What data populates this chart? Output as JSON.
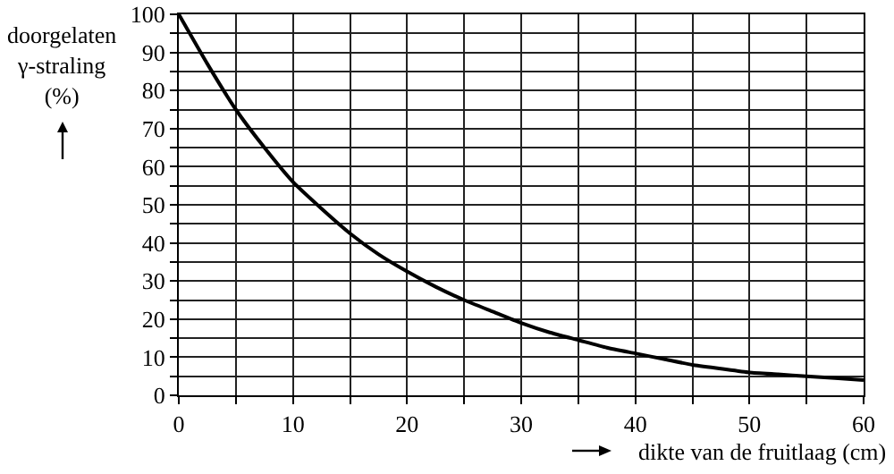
{
  "chart_data": {
    "type": "line",
    "xlabel": "dikte van de fruitlaag (cm)",
    "ylabel": "doorgelaten γ-straling (%)",
    "x": [
      0,
      2.5,
      5,
      7.5,
      10,
      12.5,
      15,
      17.5,
      20,
      22.5,
      25,
      27.5,
      30,
      32.5,
      35,
      37.5,
      40,
      42.5,
      45,
      47.5,
      50,
      52.5,
      55,
      57.5,
      60
    ],
    "series": [
      {
        "color": "#000000",
        "values": [
          100,
          87,
          75,
          65,
          56,
          49,
          42.5,
          37,
          32.5,
          28.5,
          25,
          22,
          19,
          16.5,
          14.5,
          12.5,
          11,
          9.5,
          8,
          7,
          6,
          5.5,
          5,
          4.5,
          4
        ]
      }
    ],
    "xlim": [
      0,
      60
    ],
    "ylim": [
      0,
      100
    ],
    "xticks": [
      0,
      {
        "value": 5,
        "label": null
      },
      10,
      {
        "value": 15,
        "label": null
      },
      20,
      {
        "value": 25,
        "label": null
      },
      30,
      {
        "value": 35,
        "label": null
      },
      40,
      {
        "value": 45,
        "label": null
      },
      50,
      {
        "value": 55,
        "label": null
      },
      60
    ],
    "yticks": [
      0,
      {
        "value": 5,
        "label": null
      },
      10,
      {
        "value": 15,
        "label": null
      },
      20,
      {
        "value": 25,
        "label": null
      },
      30,
      {
        "value": 35,
        "label": null
      },
      40,
      {
        "value": 45,
        "label": null
      },
      50,
      {
        "value": 55,
        "label": null
      },
      60,
      {
        "value": 65,
        "label": null
      },
      70,
      {
        "value": 75,
        "label": null
      },
      80,
      {
        "value": 85,
        "label": null
      },
      90,
      {
        "value": 95,
        "label": null
      },
      100
    ],
    "grid": true,
    "marker": "none",
    "line_style": "solid"
  }
}
